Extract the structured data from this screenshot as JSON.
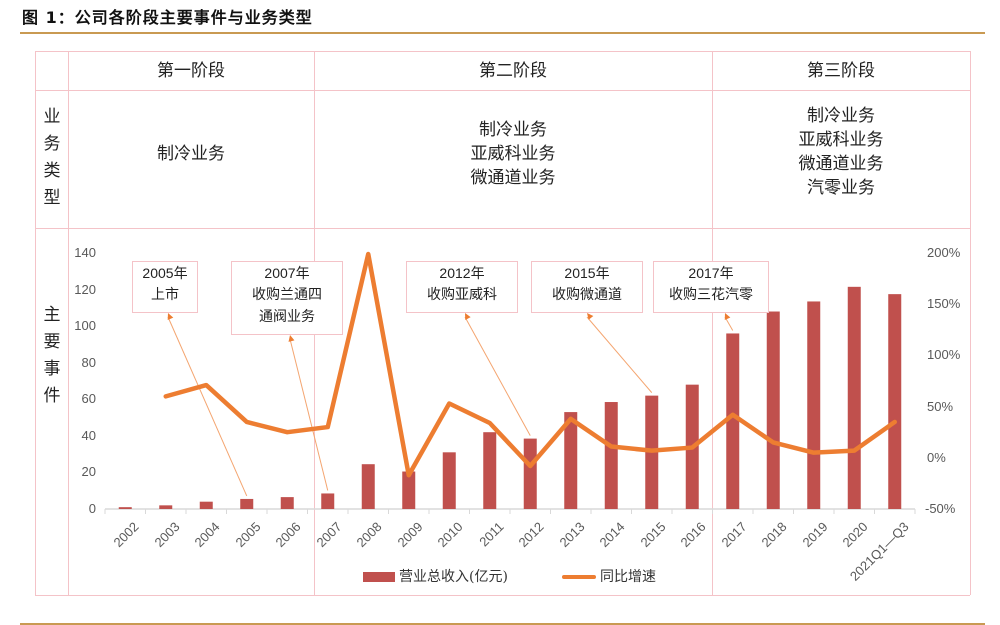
{
  "figure": {
    "title": "图 1：公司各阶段主要事件与业务类型"
  },
  "table": {
    "stages": [
      {
        "label": "第一阶段",
        "businesses": [
          "制冷业务"
        ]
      },
      {
        "label": "第二阶段",
        "businesses": [
          "制冷业务",
          "亚威科业务",
          "微通道业务"
        ]
      },
      {
        "label": "第三阶段",
        "businesses": [
          "制冷业务",
          "亚威科业务",
          "微通道业务",
          "汽零业务"
        ]
      }
    ],
    "row_labels": {
      "business_type": [
        "业",
        "务",
        "类",
        "型"
      ],
      "major_events": [
        "主",
        "要",
        "事",
        "件"
      ]
    }
  },
  "callouts": [
    {
      "year": "2005年",
      "lines": [
        "上市"
      ],
      "points_to": "2005"
    },
    {
      "year": "2007年",
      "lines": [
        "收购兰通四",
        "通阀业务"
      ],
      "points_to": "2007"
    },
    {
      "year": "2012年",
      "lines": [
        "收购亚威科"
      ],
      "points_to": "2012"
    },
    {
      "year": "2015年",
      "lines": [
        "收购微通道"
      ],
      "points_to": "2015"
    },
    {
      "year": "2017年",
      "lines": [
        "收购三花汽零"
      ],
      "points_to": "2017"
    }
  ],
  "legend": {
    "bar_label": "营业总收入(亿元)",
    "line_label": "同比增速"
  },
  "colors": {
    "bar": "#c0504d",
    "line": "#ed7d31",
    "grid_border": "#f4c3c8",
    "rule": "#c99a52",
    "arrow": "#f4a570"
  },
  "chart_data": {
    "type": "bar+line",
    "title": "公司各阶段主要事件与业务类型",
    "categories": [
      "2002",
      "2003",
      "2004",
      "2005",
      "2006",
      "2007",
      "2008",
      "2009",
      "2010",
      "2011",
      "2012",
      "2013",
      "2014",
      "2015",
      "2016",
      "2017",
      "2018",
      "2019",
      "2020",
      "2021Q1—Q3"
    ],
    "category_labels": [
      "2002",
      "2003",
      "2004",
      "2005",
      "2006",
      "2007",
      "2008",
      "2009",
      "2010",
      "2011",
      "2012",
      "2013",
      "2014",
      "2015",
      "2016",
      "2017",
      "2018",
      "2019",
      "2020",
      "2021Q1—Q3"
    ],
    "series": [
      {
        "name": "营业总收入(亿元)",
        "type": "bar",
        "axis": "left",
        "values": [
          1,
          2,
          4,
          5.5,
          6.5,
          8.5,
          24.5,
          20.5,
          31,
          42,
          38.5,
          53,
          58.5,
          62,
          68,
          96,
          108,
          113.5,
          121.5,
          117.5
        ]
      },
      {
        "name": "同比增速",
        "type": "line",
        "axis": "right",
        "unit": "%",
        "values": [
          null,
          60,
          71,
          35,
          25,
          30,
          199,
          -17,
          53,
          34,
          -8,
          38,
          11,
          7,
          10,
          42,
          15,
          5,
          7,
          35
        ]
      }
    ],
    "left_axis": {
      "ticks": [
        "0",
        "20",
        "40",
        "60",
        "80",
        "100",
        "120",
        "140"
      ],
      "ylim": [
        0,
        140
      ]
    },
    "right_axis": {
      "ticks": [
        "-50%",
        "0%",
        "50%",
        "100%",
        "150%",
        "200%"
      ],
      "ylim": [
        -50,
        200
      ]
    },
    "xlabel": "",
    "ylabel": "",
    "grid": false,
    "legend_position": "bottom"
  }
}
